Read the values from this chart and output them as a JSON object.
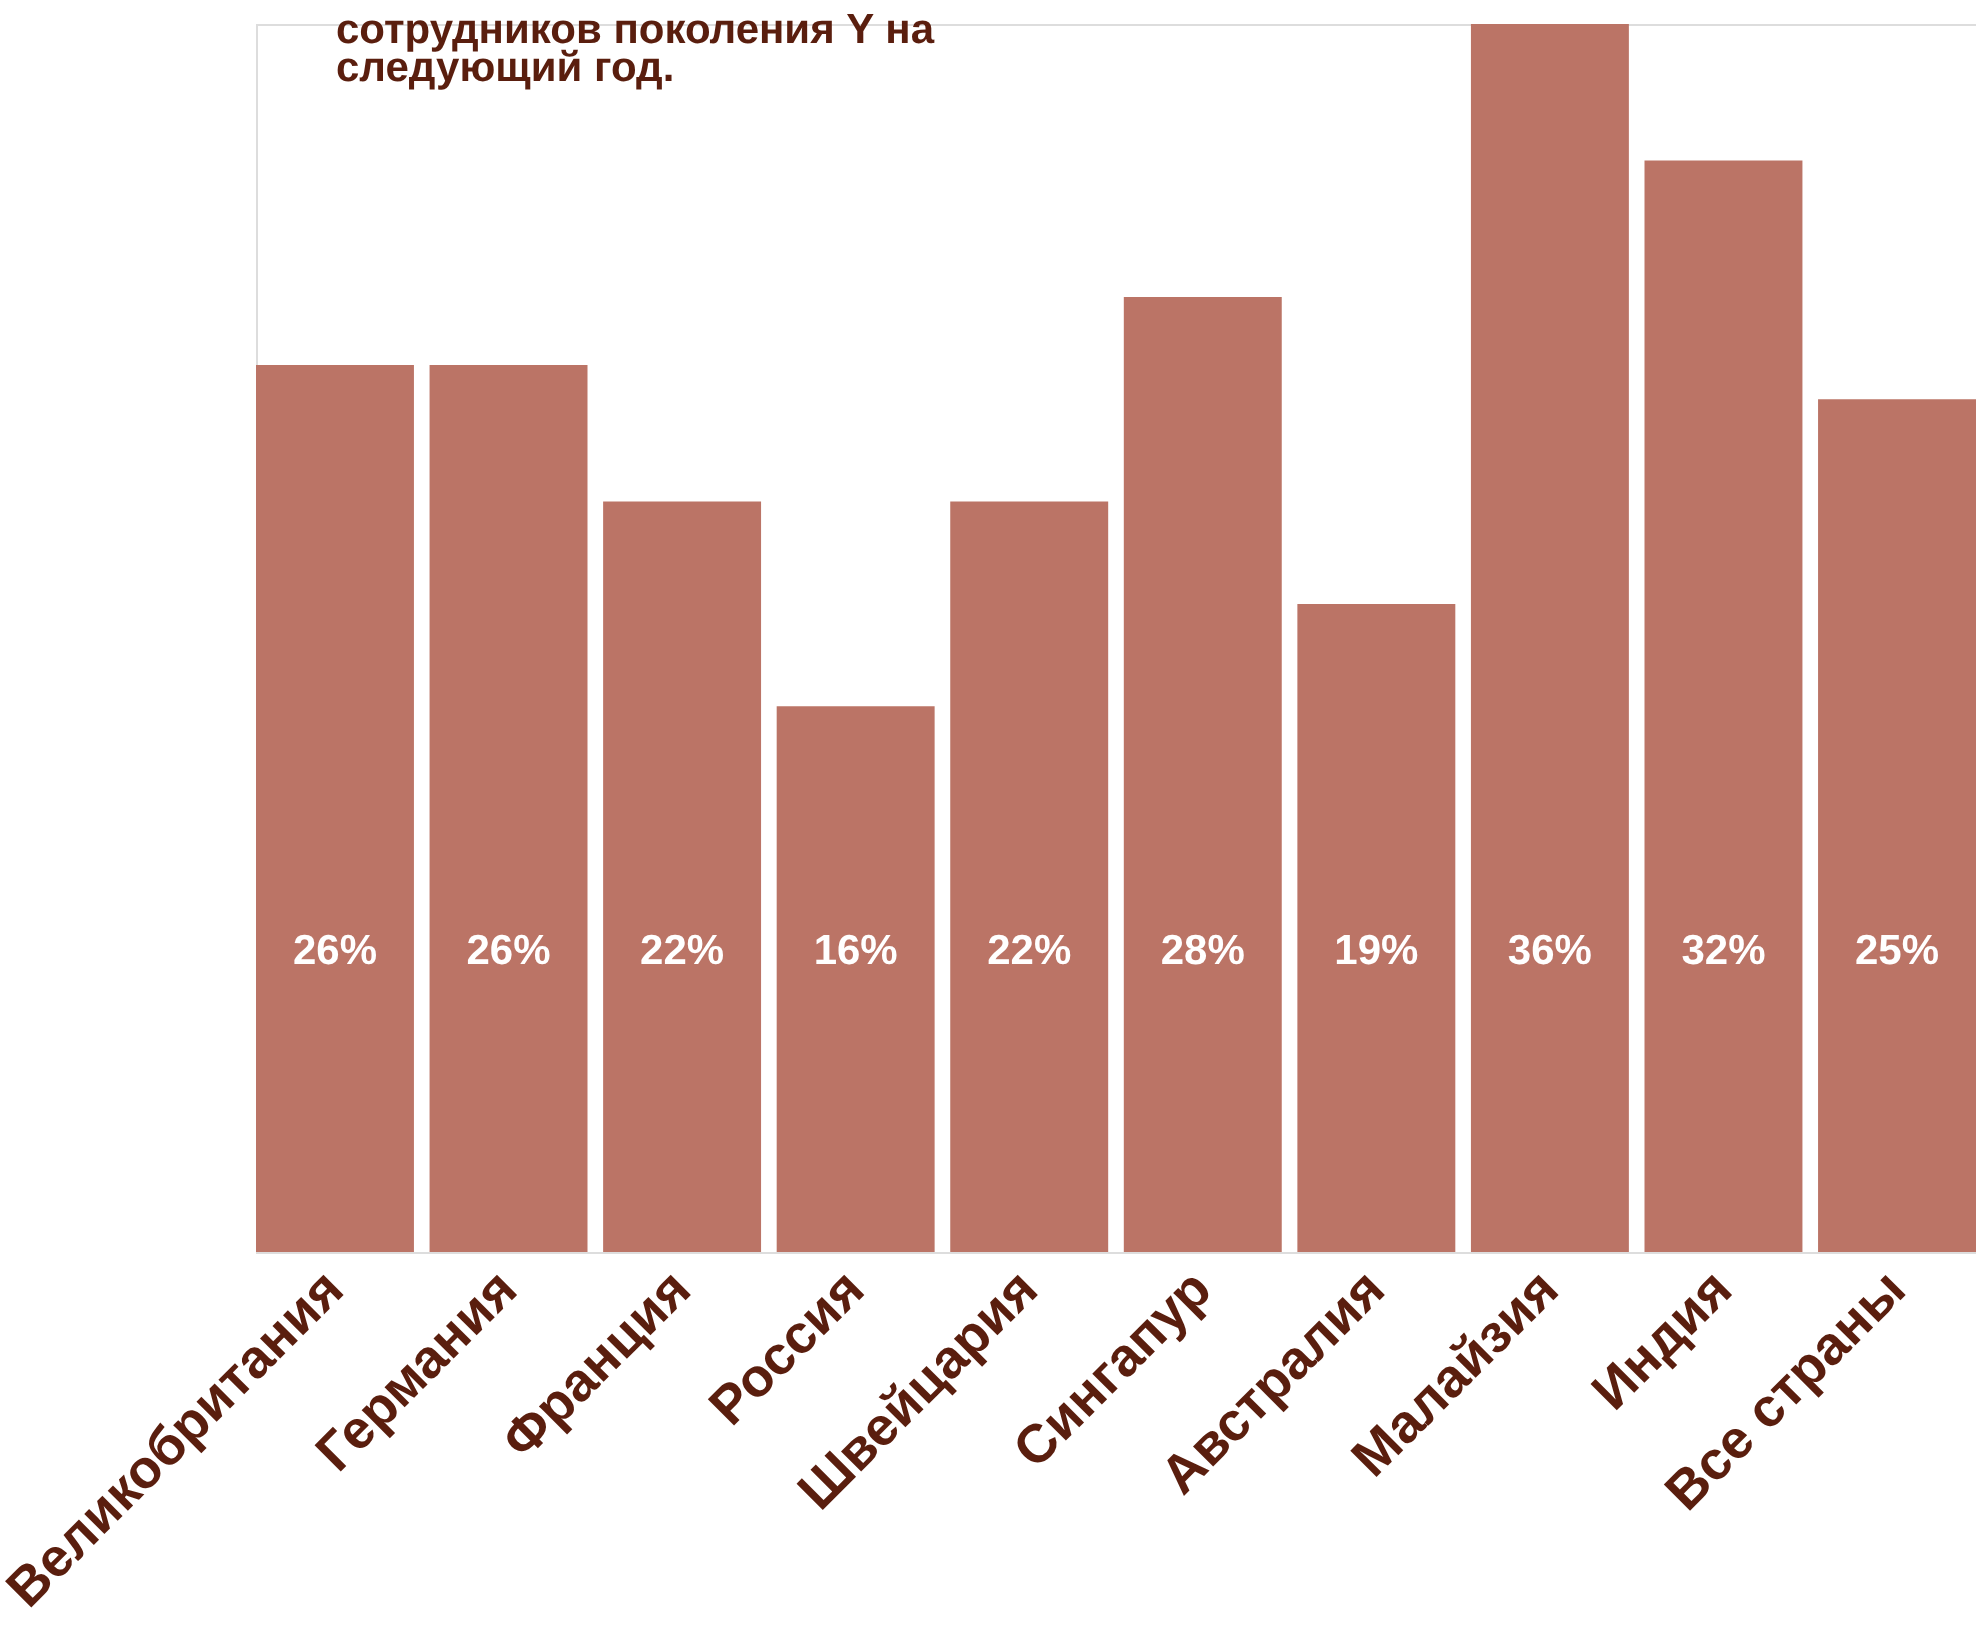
{
  "chart_data": {
    "type": "bar",
    "categories": [
      "Великобритания",
      "Германия",
      "Франция",
      "Россия",
      "Швейцария",
      "Сингапур",
      "Австралия",
      "Малайзия",
      "Индия",
      "Все страны"
    ],
    "values": [
      26,
      26,
      22,
      16,
      22,
      28,
      19,
      36,
      32,
      25
    ],
    "value_labels": [
      "26%",
      "26%",
      "22%",
      "16%",
      "22%",
      "28%",
      "19%",
      "36%",
      "32%",
      "25%"
    ],
    "color": "#bb7466",
    "annotations": [
      "сотрудников поколения Y на следующий год."
    ],
    "grid": false
  }
}
